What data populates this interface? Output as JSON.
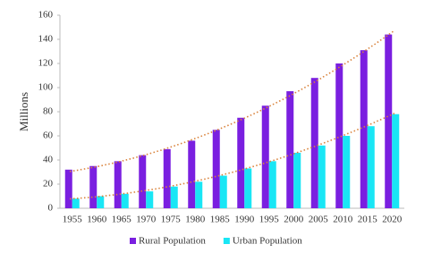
{
  "chart_data": {
    "type": "bar",
    "y_label": "Millions",
    "categories": [
      "1955",
      "1960",
      "1965",
      "1970",
      "1975",
      "1980",
      "1985",
      "1990",
      "1995",
      "2000",
      "2005",
      "2010",
      "2015",
      "2020"
    ],
    "series": [
      {
        "name": "Rural Population",
        "color": "#7a1fe0",
        "values": [
          32,
          35,
          39,
          44,
          49,
          56,
          65,
          75,
          85,
          97,
          108,
          120,
          131,
          144
        ]
      },
      {
        "name": "Urban Population",
        "color": "#19e6f5",
        "values": [
          8,
          10,
          12,
          14,
          18,
          22,
          27,
          33,
          39,
          46,
          52,
          60,
          68,
          78
        ]
      }
    ],
    "ylim": [
      0,
      160
    ],
    "yticks": [
      0,
      20,
      40,
      60,
      80,
      100,
      120,
      140,
      160
    ],
    "grid": false,
    "legend": "bottom",
    "trendline": true,
    "trendline_color": "#d9823b"
  }
}
